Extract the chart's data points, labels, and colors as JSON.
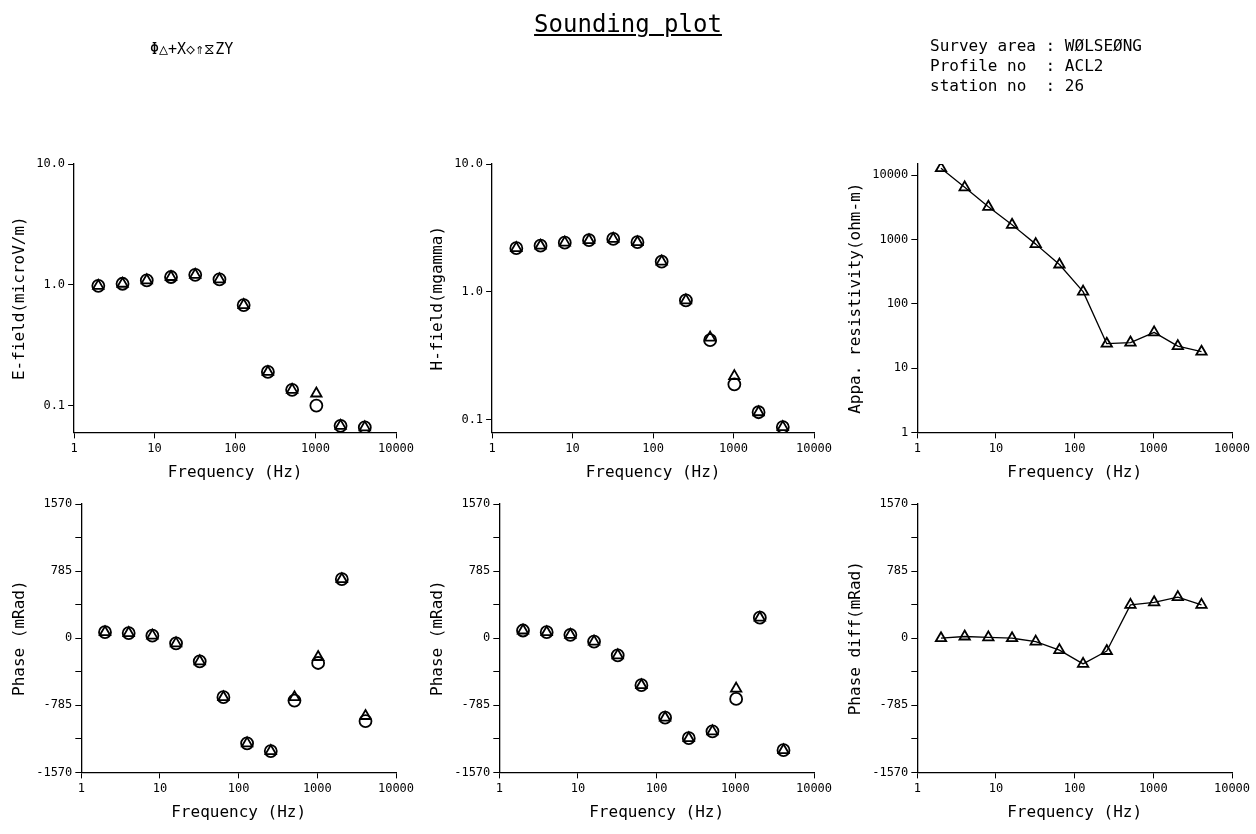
{
  "chart_data": [
    {
      "type": "scatter",
      "annotations": [
        "Φ△+X◇⇑⧖ZY",
        "Survey area : WØLSEØNG",
        "Profile no  : ACL2",
        "station no  : 26"
      ],
      "xlabel": "Frequency (Hz)",
      "ylabel": "E-field(microV/m)",
      "log": "xy",
      "grid": false,
      "legend": false,
      "x": [
        2,
        4,
        8,
        16,
        32,
        64,
        128,
        256,
        512,
        1024,
        2048,
        4096
      ],
      "xlim": [
        1,
        10000
      ],
      "xticks": [
        1,
        10,
        100,
        1000,
        10000
      ],
      "ylim": [
        0.06,
        10
      ],
      "yticks": [
        {
          "value": 0.1,
          "label": "0.1"
        },
        {
          "value": 1,
          "label": "1.0"
        },
        {
          "value": 10,
          "label": "10.0"
        }
      ],
      "series": [
        {
          "color": "#000000",
          "marker": "circle",
          "values": [
            0.98,
            1.02,
            1.09,
            1.16,
            1.21,
            1.11,
            0.68,
            0.19,
            0.135,
            0.1,
            0.068,
            0.066
          ]
        },
        {
          "color": "#000000",
          "marker": "triangle",
          "values": [
            0.98,
            1.02,
            1.09,
            1.16,
            1.21,
            1.11,
            0.68,
            0.19,
            0.135,
            0.126,
            0.068,
            0.066
          ]
        }
      ]
    },
    {
      "type": "scatter",
      "title": "Sounding plot",
      "xlabel": "Frequency (Hz)",
      "ylabel": "H-field(mgamma)",
      "log": "xy",
      "grid": false,
      "legend": false,
      "x": [
        2,
        4,
        8,
        16,
        32,
        64,
        128,
        256,
        512,
        1024,
        2048,
        4096
      ],
      "xlim": [
        1,
        10000
      ],
      "xticks": [
        1,
        10,
        100,
        1000,
        10000
      ],
      "ylim": [
        0.08,
        10
      ],
      "yticks": [
        {
          "value": 0.1,
          "label": "0.1"
        },
        {
          "value": 1,
          "label": "1.0"
        },
        {
          "value": 10,
          "label": "10.0"
        }
      ],
      "series": [
        {
          "color": "#000000",
          "marker": "circle",
          "values": [
            2.2,
            2.3,
            2.43,
            2.54,
            2.6,
            2.45,
            1.73,
            0.86,
            0.42,
            0.19,
            0.115,
            0.088
          ]
        },
        {
          "color": "#000000",
          "marker": "triangle",
          "values": [
            2.2,
            2.3,
            2.43,
            2.54,
            2.6,
            2.45,
            1.73,
            0.86,
            0.44,
            0.22,
            0.115,
            0.088
          ]
        }
      ]
    },
    {
      "type": "line",
      "xlabel": "Frequency (Hz)",
      "ylabel": "Appa. resistivity(ohm-m)",
      "log": "xy",
      "grid": false,
      "legend": false,
      "x": [
        2,
        4,
        8,
        16,
        32,
        64,
        128,
        256,
        512,
        1024,
        2048,
        4096
      ],
      "xlim": [
        1,
        10000
      ],
      "xticks": [
        1,
        10,
        100,
        1000,
        10000
      ],
      "ylim": [
        1,
        15000
      ],
      "yticks": [
        1,
        10,
        100,
        1000,
        10000
      ],
      "series": [
        {
          "color": "#000000",
          "marker": "triangle",
          "values": [
            12900,
            6500,
            3240,
            1700,
            850,
            410,
            155,
            24,
            25,
            36,
            22,
            18
          ]
        }
      ]
    },
    {
      "type": "scatter",
      "xlabel": "Frequency (Hz)",
      "ylabel": "Phase (mRad)",
      "log": "x",
      "grid": false,
      "legend": false,
      "x": [
        2,
        4,
        8,
        16,
        32,
        64,
        128,
        256,
        512,
        1024,
        2048,
        4096
      ],
      "xlim": [
        1,
        10000
      ],
      "xticks": [
        1,
        10,
        100,
        1000,
        10000
      ],
      "ylim": [
        -1570,
        1570
      ],
      "yticks": [
        -1570,
        {
          "value": -1177.5,
          "label": null
        },
        -785,
        {
          "value": -392.5,
          "label": null
        },
        0,
        {
          "value": 392.5,
          "label": null
        },
        785,
        {
          "value": 1177.5,
          "label": null
        },
        1570
      ],
      "series": [
        {
          "color": "#000000",
          "marker": "triangle",
          "values": [
            70,
            60,
            30,
            -60,
            -270,
            -690,
            -1230,
            -1320,
            -690,
            -220,
            690,
            -910
          ]
        },
        {
          "color": "#000000",
          "marker": "circle",
          "values": [
            70,
            60,
            30,
            -60,
            -270,
            -690,
            -1230,
            -1320,
            -730,
            -290,
            690,
            -970
          ]
        }
      ]
    },
    {
      "type": "scatter",
      "xlabel": "Frequency (Hz)",
      "ylabel": "Phase (mRad)",
      "log": "x",
      "grid": false,
      "legend": false,
      "x": [
        2,
        4,
        8,
        16,
        32,
        64,
        128,
        256,
        512,
        1024,
        2048,
        4096
      ],
      "xlim": [
        1,
        10000
      ],
      "xticks": [
        1,
        10,
        100,
        1000,
        10000
      ],
      "ylim": [
        -1570,
        1570
      ],
      "yticks": [
        -1570,
        {
          "value": -1177.5,
          "label": null
        },
        -785,
        {
          "value": -392.5,
          "label": null
        },
        0,
        {
          "value": 392.5,
          "label": null
        },
        785,
        {
          "value": 1177.5,
          "label": null
        },
        1570
      ],
      "series": [
        {
          "color": "#000000",
          "marker": "triangle",
          "values": [
            90,
            70,
            40,
            -40,
            -200,
            -550,
            -930,
            -1170,
            -1090,
            -590,
            240,
            -1310
          ]
        },
        {
          "color": "#000000",
          "marker": "circle",
          "values": [
            90,
            70,
            40,
            -40,
            -200,
            -550,
            -930,
            -1170,
            -1090,
            -710,
            240,
            -1310
          ]
        }
      ]
    },
    {
      "type": "line",
      "xlabel": "Frequency (Hz)",
      "ylabel": "Phase diff(mRad)",
      "log": "x",
      "grid": false,
      "legend": false,
      "x": [
        2,
        4,
        8,
        16,
        32,
        64,
        128,
        256,
        512,
        1024,
        2048,
        4096
      ],
      "xlim": [
        1,
        10000
      ],
      "xticks": [
        1,
        10,
        100,
        1000,
        10000
      ],
      "ylim": [
        -1570,
        1570
      ],
      "yticks": [
        -1570,
        {
          "value": -1177.5,
          "label": null
        },
        -785,
        {
          "value": -392.5,
          "label": null
        },
        0,
        {
          "value": 392.5,
          "label": null
        },
        785,
        {
          "value": 1177.5,
          "label": null
        },
        1570
      ],
      "series": [
        {
          "color": "#000000",
          "marker": "triangle",
          "values": [
            0,
            20,
            10,
            0,
            -40,
            -140,
            -300,
            -150,
            390,
            420,
            480,
            390
          ]
        }
      ]
    }
  ]
}
